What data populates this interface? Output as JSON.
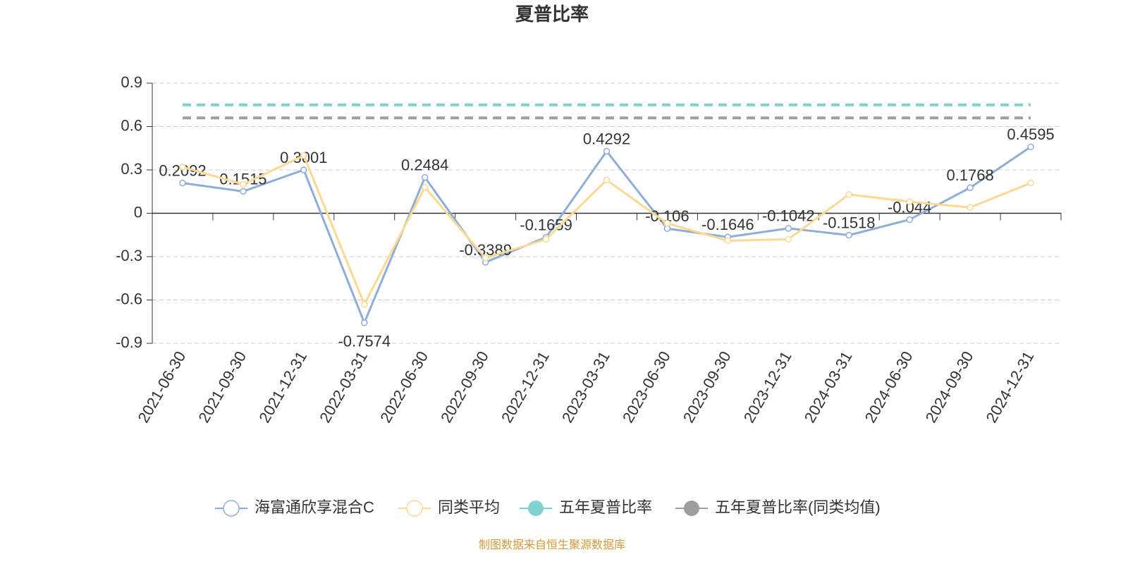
{
  "chart_data": {
    "type": "line",
    "title": "夏普比率",
    "categories": [
      "2021-06-30",
      "2021-09-30",
      "2021-12-31",
      "2022-03-31",
      "2022-06-30",
      "2022-09-30",
      "2022-12-31",
      "2023-03-31",
      "2023-06-30",
      "2023-09-30",
      "2023-12-31",
      "2024-03-31",
      "2024-06-30",
      "2024-09-30",
      "2024-12-31"
    ],
    "series": [
      {
        "name": "海富通欣享混合C",
        "color": "#8eaed8",
        "values": [
          0.2092,
          0.1515,
          0.3001,
          -0.7574,
          0.2484,
          -0.3389,
          -0.1659,
          0.4292,
          -0.106,
          -0.1646,
          -0.1042,
          -0.1518,
          -0.044,
          0.1768,
          0.4595
        ],
        "labels": true
      },
      {
        "name": "同类平均",
        "color": "#fbd993",
        "values": [
          0.32,
          0.2,
          0.4,
          -0.63,
          0.18,
          -0.31,
          -0.18,
          0.23,
          -0.07,
          -0.19,
          -0.18,
          0.13,
          0.08,
          0.04,
          0.21
        ]
      },
      {
        "name": "五年夏普比率",
        "color": "#7fd1d4",
        "value": 0.75
      },
      {
        "name": "五年夏普比率(同类均值)",
        "color": "#9e9e9e",
        "value": 0.66
      }
    ],
    "ylim": [
      -0.9,
      0.9
    ],
    "yticks": [
      -0.9,
      -0.6,
      -0.3,
      0,
      0.3,
      0.6,
      0.9
    ],
    "grid": true,
    "source": "制图数据来自恒生聚源数据库"
  }
}
